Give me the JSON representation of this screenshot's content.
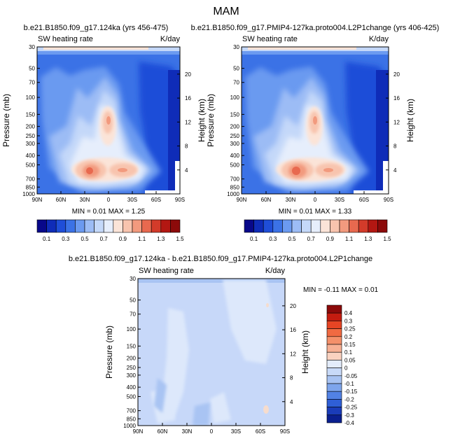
{
  "title": "MAM",
  "chart_data": [
    {
      "type": "heatmap",
      "title": "b.e21.B1850.f09_g17.124ka (yrs 456-475)",
      "left_label": "SW heating rate",
      "right_label": "K/day",
      "xlabel": "",
      "ylabel": "Pressure (mb)",
      "y2label": "Height (km)",
      "x_ticks": [
        "90N",
        "60N",
        "30N",
        "0",
        "30S",
        "60S",
        "90S"
      ],
      "y_ticks": [
        "30",
        "50",
        "70",
        "100",
        "150",
        "200",
        "250",
        "300",
        "400",
        "500",
        "700",
        "850",
        "1000"
      ],
      "y2_ticks": [
        "20",
        "16",
        "12",
        "8",
        "4"
      ],
      "stats": "MIN =   0.01  MAX =   1.25",
      "min": 0.01,
      "max": 1.25,
      "colorbar_labels": [
        "0.1",
        "0.3",
        "0.5",
        "0.7",
        "0.9",
        "1.1",
        "1.3",
        "1.5"
      ]
    },
    {
      "type": "heatmap",
      "title": "b.e21.B1850.f09_g17.PMIP4-127ka.proto004.L2P1change (yrs 406-425)",
      "left_label": "SW heating rate",
      "right_label": "K/day",
      "xlabel": "",
      "ylabel": "Pressure (mb)",
      "y2label": "Height (km)",
      "x_ticks": [
        "90N",
        "60N",
        "30N",
        "0",
        "30S",
        "60S",
        "90S"
      ],
      "y_ticks": [
        "30",
        "50",
        "70",
        "100",
        "150",
        "200",
        "250",
        "300",
        "400",
        "500",
        "700",
        "850",
        "1000"
      ],
      "y2_ticks": [
        "20",
        "16",
        "12",
        "8",
        "4"
      ],
      "stats": "MIN =   0.01  MAX =   1.33",
      "min": 0.01,
      "max": 1.33,
      "colorbar_labels": [
        "0.1",
        "0.3",
        "0.5",
        "0.7",
        "0.9",
        "1.1",
        "1.3",
        "1.5"
      ]
    },
    {
      "type": "heatmap",
      "title": "b.e21.B1850.f09_g17.124ka - b.e21.B1850.f09_g17.PMIP4-127ka.proto004.L2P1change",
      "left_label": "SW heating rate",
      "right_label": "K/day",
      "xlabel": "",
      "ylabel": "Pressure (mb)",
      "y2label": "Height (km)",
      "x_ticks": [
        "90N",
        "60N",
        "30N",
        "0",
        "30S",
        "60S",
        "90S"
      ],
      "y_ticks": [
        "30",
        "50",
        "70",
        "100",
        "150",
        "200",
        "250",
        "300",
        "400",
        "500",
        "700",
        "850",
        "1000"
      ],
      "y2_ticks": [
        "20",
        "16",
        "12",
        "8",
        "4"
      ],
      "stats": "MIN =  -0.11  MAX =   0.01",
      "min": -0.11,
      "max": 0.01,
      "colorbar_labels": [
        "0.4",
        "0.3",
        "0.25",
        "0.2",
        "0.15",
        "0.1",
        "0.05",
        "0",
        "-0.05",
        "-0.1",
        "-0.15",
        "-0.2",
        "-0.25",
        "-0.3",
        "-0.4"
      ]
    }
  ],
  "colors": {
    "seq_scale": [
      "#08088a",
      "#0f2cb8",
      "#1f4ed8",
      "#3b72e6",
      "#6b9af0",
      "#9cbcf5",
      "#c4d8f9",
      "#e6eefc",
      "#fbe4d8",
      "#f8c4ae",
      "#f29a7e",
      "#e8694f",
      "#d33b2a",
      "#b31712",
      "#8c0a0a"
    ],
    "div_scale": [
      "#8c0a0a",
      "#c41c10",
      "#e64524",
      "#f06a42",
      "#f4906a",
      "#f7b094",
      "#fad2c0",
      "#e3ecfb",
      "#c8daf8",
      "#a8c3f2",
      "#7ea5ec",
      "#5282e4",
      "#2f5fd6",
      "#1a3cb9",
      "#0a1f8f"
    ],
    "diff_fill": "#c7d8f9",
    "diff_dark": "#a9c4f3",
    "diff_pale": "#dde8fb",
    "diff_warm": "#f6dccd"
  }
}
